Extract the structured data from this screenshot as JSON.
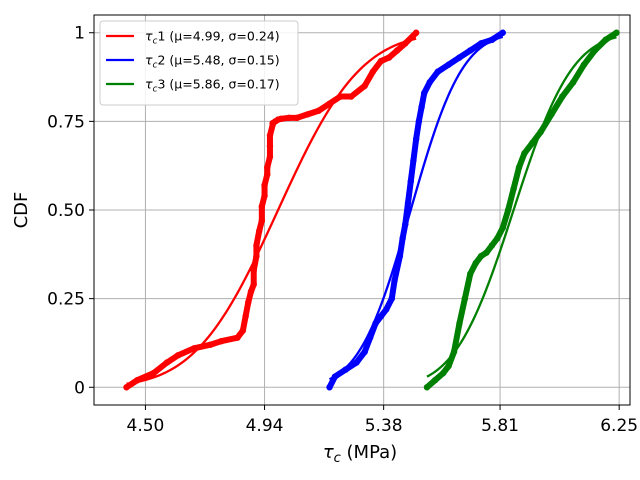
{
  "chart_data": {
    "type": "line",
    "xlabel": "τc (MPa)",
    "ylabel": "CDF",
    "xlim": [
      4.31,
      6.29
    ],
    "ylim": [
      -0.05,
      1.05
    ],
    "xticks": [
      4.5,
      4.94,
      5.38,
      5.81,
      6.25
    ],
    "xtick_labels": [
      "4.50",
      "4.94",
      "5.38",
      "5.81",
      "6.25"
    ],
    "yticks": [
      0,
      0.25,
      0.5,
      0.75,
      1
    ],
    "ytick_labels": [
      "0",
      "0.25",
      "0.50",
      "0.75",
      "1"
    ],
    "grid": true,
    "legend_position": "top-left",
    "series": [
      {
        "name": "τc1 (μ=4.99, σ=0.24)",
        "color": "#ff0000",
        "mu": 4.99,
        "sigma": 0.24,
        "empirical": {
          "x": [
            4.43,
            4.47,
            4.53,
            4.58,
            4.62,
            4.68,
            4.74,
            4.78,
            4.84,
            4.86,
            4.87,
            4.88,
            4.89,
            4.9,
            4.9,
            4.91,
            4.91,
            4.92,
            4.93,
            4.93,
            4.94,
            4.94,
            4.95,
            4.95,
            4.96,
            4.96,
            4.96,
            4.97,
            4.97,
            4.98,
            4.99,
            5.0,
            5.03,
            5.06,
            5.1,
            5.14,
            5.18,
            5.22,
            5.26,
            5.31,
            5.34,
            5.37,
            5.4,
            5.43,
            5.46,
            5.5
          ],
          "y": [
            0.0,
            0.02,
            0.04,
            0.07,
            0.09,
            0.11,
            0.12,
            0.13,
            0.14,
            0.16,
            0.2,
            0.24,
            0.27,
            0.29,
            0.33,
            0.37,
            0.4,
            0.44,
            0.47,
            0.51,
            0.54,
            0.57,
            0.6,
            0.62,
            0.65,
            0.68,
            0.71,
            0.74,
            0.745,
            0.75,
            0.755,
            0.757,
            0.76,
            0.76,
            0.77,
            0.78,
            0.8,
            0.82,
            0.82,
            0.85,
            0.89,
            0.92,
            0.93,
            0.95,
            0.97,
            1.0
          ]
        }
      },
      {
        "name": "τc2 (μ=5.48, σ=0.15)",
        "color": "#0000ff",
        "mu": 5.48,
        "sigma": 0.15,
        "empirical": {
          "x": [
            5.18,
            5.2,
            5.24,
            5.28,
            5.31,
            5.33,
            5.35,
            5.37,
            5.39,
            5.41,
            5.42,
            5.44,
            5.45,
            5.46,
            5.47,
            5.48,
            5.49,
            5.5,
            5.51,
            5.52,
            5.53,
            5.55,
            5.58,
            5.62,
            5.66,
            5.7,
            5.74,
            5.78,
            5.82
          ],
          "y": [
            0.0,
            0.03,
            0.05,
            0.07,
            0.1,
            0.14,
            0.18,
            0.2,
            0.22,
            0.25,
            0.3,
            0.37,
            0.42,
            0.46,
            0.52,
            0.58,
            0.64,
            0.7,
            0.75,
            0.79,
            0.83,
            0.86,
            0.89,
            0.91,
            0.93,
            0.95,
            0.97,
            0.98,
            1.0
          ]
        }
      },
      {
        "name": "τc3 (μ=5.86, σ=0.17)",
        "color": "#008000",
        "mu": 5.86,
        "sigma": 0.17,
        "empirical": {
          "x": [
            5.54,
            5.57,
            5.6,
            5.62,
            5.64,
            5.66,
            5.68,
            5.7,
            5.72,
            5.74,
            5.76,
            5.78,
            5.8,
            5.82,
            5.84,
            5.86,
            5.88,
            5.9,
            5.93,
            5.96,
            6.0,
            6.04,
            6.08,
            6.12,
            6.16,
            6.2,
            6.24
          ],
          "y": [
            0.0,
            0.02,
            0.04,
            0.06,
            0.1,
            0.18,
            0.25,
            0.32,
            0.35,
            0.37,
            0.38,
            0.4,
            0.42,
            0.45,
            0.5,
            0.56,
            0.62,
            0.66,
            0.69,
            0.72,
            0.77,
            0.82,
            0.86,
            0.91,
            0.95,
            0.98,
            1.0
          ]
        }
      }
    ]
  }
}
